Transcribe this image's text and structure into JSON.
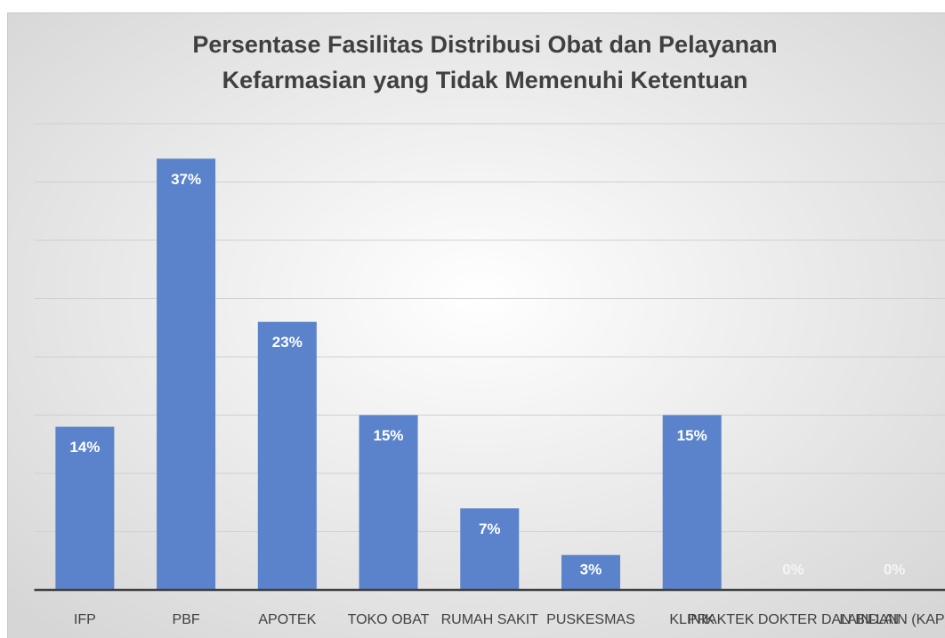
{
  "chart_data": {
    "type": "bar",
    "title": [
      "Persentase Fasilitas Distribusi Obat dan Pelayanan",
      "Kefarmasian yang   Tidak Memenuhi Ketentuan"
    ],
    "categories": [
      "IFP",
      "PBF",
      "APOTEK",
      "TOKO OBAT",
      "RUMAH SAKIT",
      "PUSKESMAS",
      "KLINIK",
      "PRAKTEK DOKTER DAN BIDAN",
      "LAIN-LAIN (KAP)"
    ],
    "values": [
      14,
      37,
      23,
      15,
      7,
      3,
      15,
      0,
      0
    ],
    "value_labels": [
      "14%",
      "37%",
      "23%",
      "15%",
      "7%",
      "3%",
      "15%",
      "0%",
      "0%"
    ],
    "color": "#5b83cc",
    "ylim": [
      0,
      40
    ],
    "yticks": [
      0,
      5,
      10,
      15,
      20,
      25,
      30,
      35,
      40
    ],
    "grid": true
  }
}
